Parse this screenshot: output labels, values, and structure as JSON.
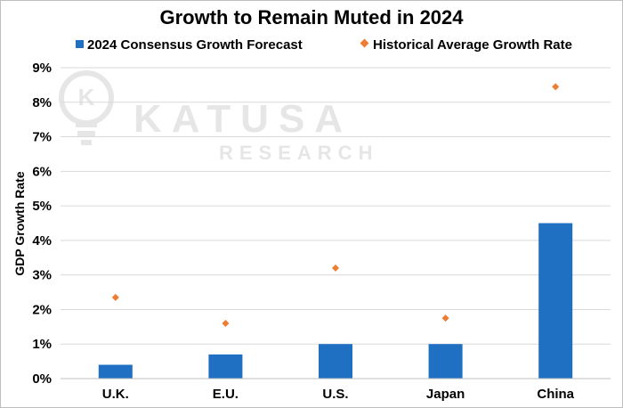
{
  "chart_data": {
    "type": "bar",
    "title": "Growth to Remain Muted in 2024",
    "ylabel": "GDP Growth Rate",
    "xlabel": "",
    "ylim": [
      0,
      9
    ],
    "yticks": [
      "0%",
      "1%",
      "2%",
      "3%",
      "4%",
      "5%",
      "6%",
      "7%",
      "8%",
      "9%"
    ],
    "categories": [
      "U.K.",
      "E.U.",
      "U.S.",
      "Japan",
      "China"
    ],
    "series": [
      {
        "name": "2024 Consensus Growth Forecast",
        "type": "bar",
        "color": "#1f6fc2",
        "values": [
          0.4,
          0.7,
          1.0,
          1.0,
          4.5
        ]
      },
      {
        "name": "Historical Average Growth Rate",
        "type": "marker",
        "color": "#ed7d31",
        "values": [
          2.35,
          1.6,
          3.2,
          1.75,
          8.45
        ]
      }
    ],
    "grid": true,
    "legend_position": "top"
  },
  "watermark": {
    "name": "KATUSA",
    "subtitle": "RESEARCH",
    "monogram": "K"
  }
}
